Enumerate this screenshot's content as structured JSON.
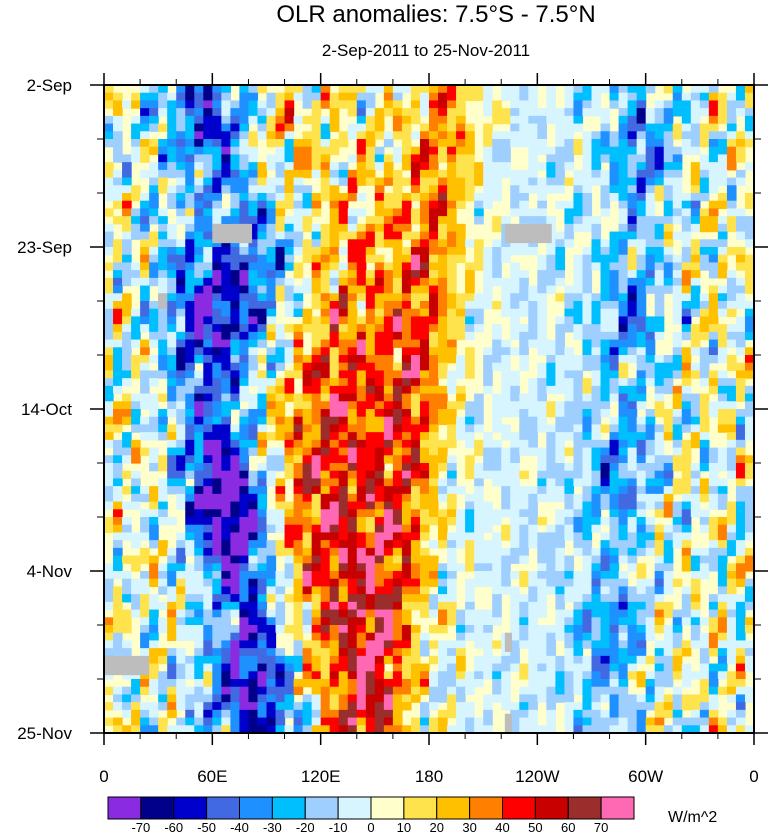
{
  "chart_data": {
    "type": "heatmap",
    "title": "OLR anomalies: 7.5°S - 7.5°N",
    "subtitle": "2-Sep-2011 to 25-Nov-2011",
    "x_ticks": [
      "0",
      "60E",
      "120E",
      "180",
      "120W",
      "60W",
      "0"
    ],
    "x_tick_values": [
      0,
      60,
      120,
      180,
      240,
      300,
      360
    ],
    "x_range": [
      0,
      360
    ],
    "y_ticks": [
      "2-Sep",
      "23-Sep",
      "14-Oct",
      "4-Nov",
      "25-Nov"
    ],
    "y_tick_days": [
      0,
      21,
      42,
      63,
      84
    ],
    "y_range_days": [
      0,
      84
    ],
    "y_direction": "time increases downward",
    "colorbar": {
      "labels": [
        "-70",
        "-60",
        "-50",
        "-40",
        "-30",
        "-20",
        "-10",
        "0",
        "10",
        "20",
        "30",
        "40",
        "50",
        "60",
        "70"
      ],
      "levels": [
        -70,
        -60,
        -50,
        -40,
        -30,
        -20,
        -10,
        0,
        10,
        20,
        30,
        40,
        50,
        60,
        70
      ],
      "colors": [
        "#8a2be2",
        "#00008b",
        "#0000cd",
        "#4169e1",
        "#1e90ff",
        "#00bfff",
        "#9fcfff",
        "#d7f5ff",
        "#ffffcc",
        "#ffe34d",
        "#ffc000",
        "#ff8000",
        "#ff0000",
        "#c80000",
        "#9b2d2d",
        "#ff69b4"
      ],
      "units": "W/m^2"
    },
    "missing_color": "#bdbdbd"
  }
}
